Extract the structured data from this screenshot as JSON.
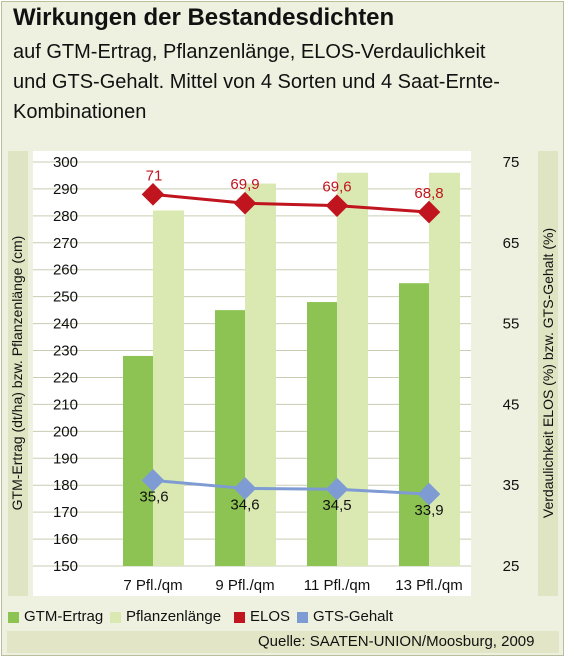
{
  "title": "Wirkungen der Bestandesdichten",
  "subtitle_lines": [
    "auf GTM-Ertrag, Pflanzenlänge, ELOS-Verdaulichkeit",
    "und GTS-Gehalt. Mittel von 4 Sorten und 4 Saat-Ernte-",
    "Kombinationen"
  ],
  "source": "Quelle: SAATEN-UNION/Moosburg, 2009",
  "colors": {
    "gtm": "#8dc352",
    "pflanzen": "#d9e9b1",
    "elos": "#c0141e",
    "gts": "#7f9bd3"
  },
  "chart_data": {
    "type": "bar",
    "categories": [
      "7 Pfl./qm",
      "9 Pfl./qm",
      "11 Pfl./qm",
      "13 Pfl./qm"
    ],
    "series": [
      {
        "name": "GTM-Ertrag",
        "type": "bar",
        "axis": "left",
        "values": [
          228,
          245,
          248,
          255
        ]
      },
      {
        "name": "Pflanzenlänge",
        "type": "bar",
        "axis": "left",
        "values": [
          282,
          292,
          296,
          296
        ]
      },
      {
        "name": "ELOS",
        "type": "line",
        "axis": "right",
        "values": [
          71,
          69.9,
          69.6,
          68.8
        ],
        "labels": [
          "71",
          "69,9",
          "69,6",
          "68,8"
        ]
      },
      {
        "name": "GTS-Gehalt",
        "type": "line",
        "axis": "right",
        "values": [
          35.6,
          34.6,
          34.5,
          33.9
        ],
        "labels": [
          "35,6",
          "34,6",
          "34,5",
          "33,9"
        ]
      }
    ],
    "ylabel": "GTM-Ertrag (dt/ha) bzw. Pflanzenlänge (cm)",
    "y2label": "Verdaulichkeit ELOS (%) bzw. GTS-Gehalt (%)",
    "ylim": [
      150,
      300
    ],
    "yticks": [
      "150",
      "160",
      "170",
      "180",
      "190",
      "200",
      "210",
      "220",
      "230",
      "240",
      "250",
      "260",
      "270",
      "280",
      "290",
      "300"
    ],
    "y2lim": [
      25,
      75
    ],
    "y2ticks": [
      "25",
      "35",
      "45",
      "55",
      "65",
      "75"
    ],
    "grid": true,
    "legend": "bottom"
  }
}
